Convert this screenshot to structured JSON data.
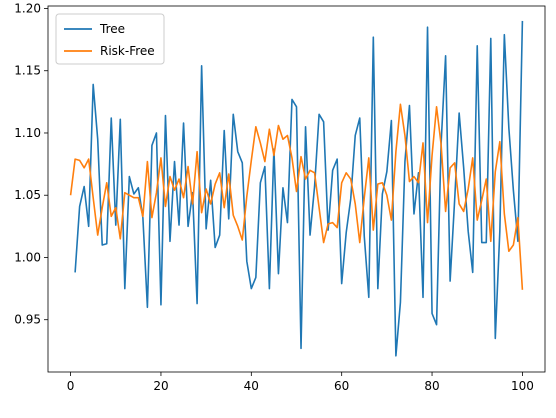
{
  "chart_data": {
    "type": "line",
    "title": "",
    "xlabel": "",
    "ylabel": "",
    "xlim": [
      -5,
      105
    ],
    "ylim": [
      0.908,
      1.202
    ],
    "xticks": [
      0,
      20,
      40,
      60,
      80,
      100
    ],
    "yticks": [
      0.95,
      1.0,
      1.05,
      1.1,
      1.15,
      1.2
    ],
    "xtick_labels": [
      "0",
      "20",
      "40",
      "60",
      "80",
      "100"
    ],
    "ytick_labels": [
      "0.95",
      "1.00",
      "1.05",
      "1.10",
      "1.15",
      "1.20"
    ],
    "grid": false,
    "legend_position": "top-left",
    "series": [
      {
        "name": "Tree",
        "color": "#1f77b4",
        "x": [
          1,
          2,
          3,
          4,
          5,
          6,
          7,
          8,
          9,
          10,
          11,
          12,
          13,
          14,
          15,
          16,
          17,
          18,
          19,
          20,
          21,
          22,
          23,
          24,
          25,
          26,
          27,
          28,
          29,
          30,
          31,
          32,
          33,
          34,
          35,
          36,
          37,
          38,
          39,
          40,
          41,
          42,
          43,
          44,
          45,
          46,
          47,
          48,
          49,
          50,
          51,
          52,
          53,
          54,
          55,
          56,
          57,
          58,
          59,
          60,
          61,
          62,
          63,
          64,
          65,
          66,
          67,
          68,
          69,
          70,
          71,
          72,
          73,
          74,
          75,
          76,
          77,
          78,
          79,
          80,
          81,
          82,
          83,
          84,
          85,
          86,
          87,
          88,
          89,
          90,
          91,
          92,
          93,
          94,
          95,
          96,
          97,
          98,
          99,
          100
        ],
        "values": [
          0.988,
          1.041,
          1.057,
          1.025,
          1.139,
          1.095,
          1.01,
          1.011,
          1.112,
          1.026,
          1.111,
          0.975,
          1.065,
          1.051,
          1.056,
          1.032,
          0.96,
          1.09,
          1.1,
          0.962,
          1.114,
          1.013,
          1.077,
          1.026,
          1.108,
          1.025,
          1.052,
          0.963,
          1.154,
          1.023,
          1.062,
          1.008,
          1.018,
          1.102,
          1.031,
          1.115,
          1.085,
          1.076,
          0.997,
          0.975,
          0.984,
          1.06,
          1.073,
          0.975,
          1.087,
          0.987,
          1.056,
          1.028,
          1.127,
          1.121,
          0.927,
          1.105,
          1.018,
          1.057,
          1.115,
          1.109,
          1.022,
          1.07,
          1.079,
          0.979,
          1.02,
          1.047,
          1.098,
          1.112,
          1.017,
          0.968,
          1.177,
          0.975,
          1.051,
          1.069,
          1.11,
          0.921,
          0.964,
          1.077,
          1.122,
          1.035,
          1.068,
          0.968,
          1.185,
          0.955,
          0.946,
          1.091,
          1.162,
          0.981,
          1.046,
          1.116,
          1.072,
          1.021,
          0.988,
          1.17,
          1.012,
          1.012,
          1.176,
          0.935,
          1.021,
          1.179,
          1.104,
          1.054,
          1.013,
          1.19
        ]
      },
      {
        "name": "Risk-Free",
        "color": "#ff7f0e",
        "x": [
          0,
          1,
          2,
          3,
          4,
          5,
          6,
          7,
          8,
          9,
          10,
          11,
          12,
          13,
          14,
          15,
          16,
          17,
          18,
          19,
          20,
          21,
          22,
          23,
          24,
          25,
          26,
          27,
          28,
          29,
          30,
          31,
          32,
          33,
          34,
          35,
          36,
          37,
          38,
          39,
          40,
          41,
          42,
          43,
          44,
          45,
          46,
          47,
          48,
          49,
          50,
          51,
          52,
          53,
          54,
          55,
          56,
          57,
          58,
          59,
          60,
          61,
          62,
          63,
          64,
          65,
          66,
          67,
          68,
          69,
          70,
          71,
          72,
          73,
          74,
          75,
          76,
          77,
          78,
          79,
          80,
          81,
          82,
          83,
          84,
          85,
          86,
          87,
          88,
          89,
          90,
          91,
          92,
          93,
          94,
          95,
          96,
          97,
          98,
          99,
          100
        ],
        "values": [
          1.05,
          1.079,
          1.078,
          1.072,
          1.079,
          1.048,
          1.018,
          1.04,
          1.06,
          1.033,
          1.04,
          1.015,
          1.052,
          1.05,
          1.048,
          1.048,
          1.033,
          1.077,
          1.032,
          1.052,
          1.08,
          1.041,
          1.065,
          1.054,
          1.063,
          1.048,
          1.073,
          1.043,
          1.085,
          1.036,
          1.055,
          1.043,
          1.059,
          1.068,
          1.04,
          1.067,
          1.034,
          1.025,
          1.014,
          1.049,
          1.078,
          1.105,
          1.092,
          1.077,
          1.103,
          1.082,
          1.106,
          1.095,
          1.098,
          1.08,
          1.053,
          1.081,
          1.063,
          1.07,
          1.068,
          1.04,
          1.012,
          1.027,
          1.028,
          1.024,
          1.06,
          1.068,
          1.063,
          1.043,
          1.012,
          1.048,
          1.08,
          1.022,
          1.059,
          1.06,
          1.05,
          1.03,
          1.085,
          1.123,
          1.098,
          1.061,
          1.065,
          1.06,
          1.092,
          1.028,
          1.082,
          1.121,
          1.091,
          1.037,
          1.072,
          1.076,
          1.043,
          1.037,
          1.055,
          1.08,
          1.03,
          1.046,
          1.063,
          1.013,
          1.069,
          1.093,
          1.035,
          1.005,
          1.01,
          1.032,
          0.974
        ]
      }
    ]
  }
}
